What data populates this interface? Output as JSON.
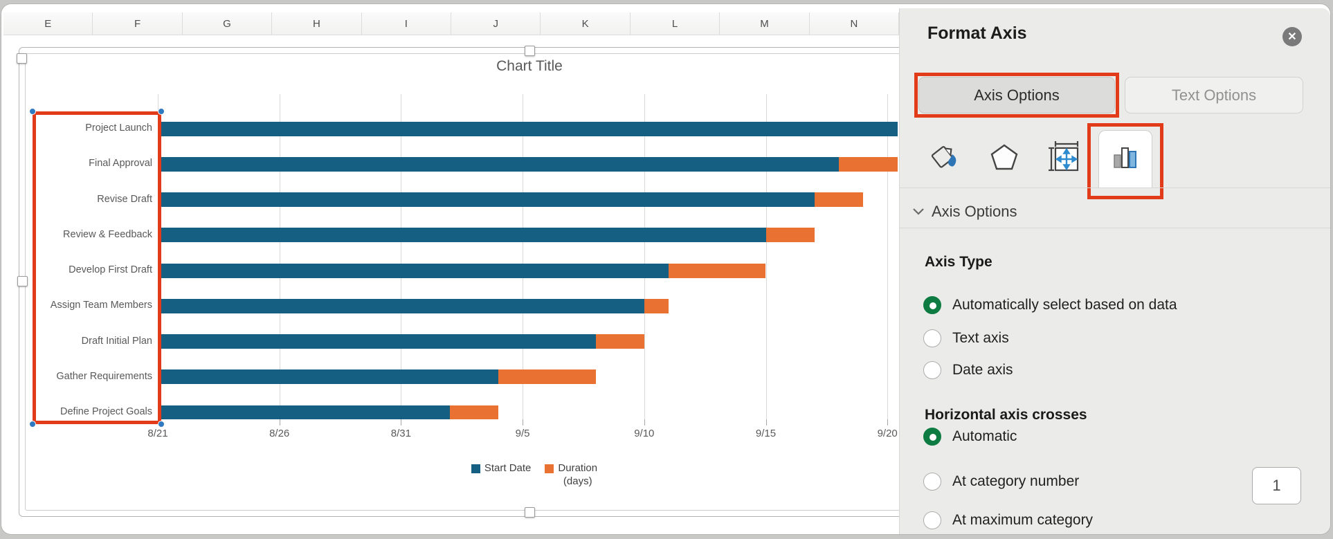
{
  "spreadsheet": {
    "column_headers": [
      "E",
      "F",
      "G",
      "H",
      "I",
      "J",
      "K",
      "L",
      "M",
      "N"
    ]
  },
  "chart_data": {
    "type": "bar",
    "orientation": "horizontal",
    "stacked": true,
    "title": "Chart Title",
    "categories": [
      "Project Launch",
      "Final Approval",
      "Revise Draft",
      "Review & Feedback",
      "Develop First Draft",
      "Assign Team Members",
      "Draft Initial Plan",
      "Gather Requirements",
      "Define Project Goals"
    ],
    "series": [
      {
        "name": "Start Date",
        "color": "#156082",
        "offset_days_from_8_21": [
          32,
          28,
          27,
          25,
          21,
          20,
          18,
          14,
          12
        ]
      },
      {
        "name": "Duration (days)",
        "color": "#e97132",
        "values": [
          2,
          4,
          2,
          2,
          4,
          1,
          2,
          4,
          2
        ]
      }
    ],
    "x_axis": {
      "tick_labels": [
        "8/21",
        "8/26",
        "8/31",
        "9/5",
        "9/10",
        "9/15",
        "9/20"
      ],
      "days_per_tick": 5,
      "min_label": "8/21",
      "visible_max_days": 30.4
    },
    "legend_position": "bottom",
    "legend_entries": [
      {
        "label_lines": [
          "Start Date"
        ],
        "color": "#156082"
      },
      {
        "label_lines": [
          "Duration",
          "(days)"
        ],
        "color": "#e97132"
      }
    ],
    "gridlines": true,
    "bars_clipped_at_right": [
      0,
      1
    ]
  },
  "annotations": {
    "highlight_color": "#e23b1a",
    "corner_dot_color": "#2f7ac0"
  },
  "panel": {
    "title": "Format Axis",
    "close_glyph": "✕",
    "tabs": [
      {
        "label": "Axis Options",
        "selected": true,
        "highlighted": true
      },
      {
        "label": "Text Options",
        "selected": false,
        "highlighted": false
      }
    ],
    "icon_tabs": [
      {
        "name": "fill-line-icon"
      },
      {
        "name": "effects-icon"
      },
      {
        "name": "size-properties-icon"
      },
      {
        "name": "chart-options-icon",
        "selected": true,
        "highlighted": true
      }
    ],
    "section_header": "Axis Options",
    "axis_type": {
      "heading": "Axis Type",
      "options": [
        {
          "label": "Automatically select based on data",
          "selected": true
        },
        {
          "label": "Text axis",
          "selected": false
        },
        {
          "label": "Date axis",
          "selected": false
        }
      ]
    },
    "crosses": {
      "heading": "Horizontal axis crosses",
      "options": [
        {
          "label": "Automatic",
          "selected": true
        },
        {
          "label": "At category number",
          "selected": false
        },
        {
          "label": "At maximum category",
          "selected": false
        }
      ],
      "category_number_value": "1"
    }
  }
}
